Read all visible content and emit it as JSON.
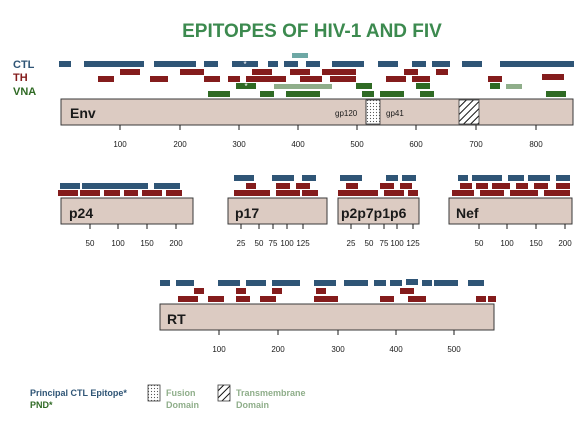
{
  "title": "EPITOPES OF HIV-1 AND FIV",
  "row_labels": {
    "ctl": "CTL",
    "th": "TH",
    "vna": "VNA"
  },
  "colors": {
    "ctl": "#2f5576",
    "th": "#841c1c",
    "vna": "#2f6a24",
    "vna_light": "#8fae8a",
    "pnd": "#6ea8a5",
    "title": "#3c8a4f",
    "protein": "#dccbc2"
  },
  "proteins": {
    "env": {
      "label": "Env",
      "subunits": [
        "gp120",
        "gp41"
      ],
      "ticks": [
        "100",
        "200",
        "300",
        "400",
        "500",
        "600",
        "700",
        "800"
      ],
      "principal_marker": "*"
    },
    "p24": {
      "label": "p24",
      "ticks": [
        "50",
        "100",
        "150",
        "200"
      ]
    },
    "p17": {
      "label": "p17",
      "ticks": [
        "25",
        "50",
        "75",
        "100",
        "125"
      ]
    },
    "p2p7p1p6": {
      "label": "p2p7p1p6",
      "ticks": [
        "25",
        "50",
        "75",
        "100",
        "125"
      ]
    },
    "nef": {
      "label": "Nef",
      "ticks": [
        "50",
        "100",
        "150",
        "200"
      ]
    },
    "rt": {
      "label": "RT",
      "ticks": [
        "100",
        "200",
        "300",
        "400",
        "500"
      ]
    }
  },
  "legend": {
    "principal": "Principal CTL Epitope*",
    "pnd": "PND*",
    "fusion": [
      "Fusion",
      "Domain"
    ],
    "transmembrane": [
      "Transmembrane",
      "Domain"
    ]
  }
}
